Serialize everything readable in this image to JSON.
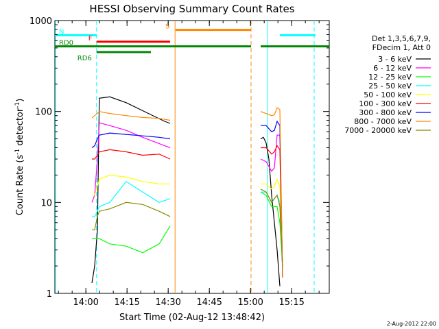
{
  "chart_data": {
    "type": "line",
    "title": "HESSI Observing Summary Count Rates",
    "xlabel": "Start Time (02-Aug-12 13:48:42)",
    "ylabel_main": "Count Rate (s",
    "ylabel_sup1": "-1",
    "ylabel_mid": " detector",
    "ylabel_sup2": "-1",
    "ylabel_end": ")",
    "yscale": "log",
    "ylim": [
      1,
      1000
    ],
    "xlim_minutes": [
      0,
      100
    ],
    "x_unit": "minutes after 13:48:42",
    "yticks": [
      {
        "value": 1,
        "label": "1"
      },
      {
        "value": 10,
        "label": "10"
      },
      {
        "value": 100,
        "label": "100"
      },
      {
        "value": 1000,
        "label": "1000"
      }
    ],
    "xticks": [
      {
        "minute": 11.3,
        "label": "14:00"
      },
      {
        "minute": 26.3,
        "label": "14:15"
      },
      {
        "minute": 41.3,
        "label": "14:30"
      },
      {
        "minute": 56.3,
        "label": "14:45"
      },
      {
        "minute": 71.3,
        "label": "15:00"
      },
      {
        "minute": 86.3,
        "label": "15:15"
      }
    ],
    "legend": {
      "header": [
        "Det 1,3,5,6,7,9,",
        "FDecim 1, Att 0"
      ],
      "placement": "right"
    },
    "series": [
      {
        "name": "3 - 6 keV",
        "color": "#000000",
        "segments": [
          [
            [
              13.5,
              1.3
            ],
            [
              14.5,
              2.0
            ],
            [
              15.5,
              5
            ],
            [
              16.2,
              140
            ],
            [
              20,
              145
            ],
            [
              26,
              125
            ],
            [
              32,
              102
            ],
            [
              40,
              78
            ],
            [
              42,
              74
            ]
          ],
          [
            [
              75,
              50
            ],
            [
              76,
              52
            ],
            [
              77,
              45
            ],
            [
              78,
              30
            ],
            [
              79,
              12
            ],
            [
              80,
              6
            ],
            [
              81,
              3
            ],
            [
              82,
              1.2
            ]
          ]
        ]
      },
      {
        "name": "6 - 12 keV",
        "color": "#ff00ff",
        "segments": [
          [
            [
              13.5,
              10
            ],
            [
              14.5,
              12
            ],
            [
              15.5,
              30
            ],
            [
              16.2,
              75
            ],
            [
              20,
              70
            ],
            [
              26,
              62
            ],
            [
              32,
              52
            ],
            [
              40,
              42
            ],
            [
              42,
              40
            ]
          ],
          [
            [
              75,
              30
            ],
            [
              77,
              28
            ],
            [
              79,
              22
            ],
            [
              80,
              24
            ],
            [
              81,
              55
            ],
            [
              82,
              55
            ],
            [
              83,
              1.5
            ]
          ]
        ]
      },
      {
        "name": "12 - 25 keV",
        "color": "#00ff00",
        "segments": [
          [
            [
              13.5,
              4
            ],
            [
              14.5,
              4
            ],
            [
              15.5,
              4
            ],
            [
              16.2,
              4
            ],
            [
              20,
              3.5
            ],
            [
              26,
              3.3
            ],
            [
              32,
              2.8
            ],
            [
              38,
              3.5
            ],
            [
              42,
              5.5
            ]
          ],
          [
            [
              75,
              13
            ],
            [
              77,
              12
            ],
            [
              79,
              9
            ],
            [
              80,
              9
            ],
            [
              81,
              9
            ],
            [
              82,
              6
            ],
            [
              83,
              2
            ]
          ]
        ]
      },
      {
        "name": "25 - 50 keV",
        "color": "#00ffff",
        "segments": [
          [
            [
              13.5,
              7
            ],
            [
              14.5,
              7
            ],
            [
              15.5,
              8
            ],
            [
              16.2,
              9
            ],
            [
              20,
              10
            ],
            [
              26,
              17
            ],
            [
              32,
              13
            ],
            [
              38,
              10
            ],
            [
              42,
              11
            ]
          ],
          [
            [
              75,
              13
            ],
            [
              77,
              13
            ],
            [
              79,
              10
            ],
            [
              80,
              11
            ],
            [
              81,
              12
            ],
            [
              82,
              10
            ],
            [
              83,
              2
            ]
          ]
        ]
      },
      {
        "name": "50 - 100 keV",
        "color": "#ffff00",
        "segments": [
          [
            [
              13.5,
              12
            ],
            [
              14.5,
              12
            ],
            [
              15.5,
              15
            ],
            [
              16.2,
              18
            ],
            [
              20,
              20
            ],
            [
              26,
              19
            ],
            [
              32,
              17
            ],
            [
              38,
              16
            ],
            [
              42,
              16
            ]
          ],
          [
            [
              75,
              16
            ],
            [
              77,
              16
            ],
            [
              79,
              14
            ],
            [
              80,
              15
            ],
            [
              81,
              18
            ],
            [
              82,
              15
            ],
            [
              83,
              2
            ]
          ]
        ]
      },
      {
        "name": "100 - 300 keV",
        "color": "#ff0000",
        "segments": [
          [
            [
              13.5,
              30
            ],
            [
              14.5,
              30
            ],
            [
              15.5,
              33
            ],
            [
              16.2,
              36
            ],
            [
              20,
              38
            ],
            [
              26,
              36
            ],
            [
              32,
              33
            ],
            [
              38,
              34
            ],
            [
              42,
              30
            ]
          ],
          [
            [
              75,
              40
            ],
            [
              77,
              40
            ],
            [
              79,
              34
            ],
            [
              80,
              36
            ],
            [
              81,
              42
            ],
            [
              82,
              38
            ],
            [
              83,
              1.5
            ]
          ]
        ]
      },
      {
        "name": "300 - 800 keV",
        "color": "#0000ff",
        "segments": [
          [
            [
              13.5,
              40
            ],
            [
              14.5,
              42
            ],
            [
              15.5,
              50
            ],
            [
              16.2,
              55
            ],
            [
              20,
              58
            ],
            [
              26,
              56
            ],
            [
              32,
              54
            ],
            [
              38,
              52
            ],
            [
              42,
              50
            ]
          ],
          [
            [
              75,
              70
            ],
            [
              77,
              70
            ],
            [
              79,
              60
            ],
            [
              80,
              62
            ],
            [
              81,
              78
            ],
            [
              82,
              70
            ],
            [
              83,
              1.5
            ]
          ]
        ]
      },
      {
        "name": "800 - 7000 keV",
        "color": "#ff8800",
        "segments": [
          [
            [
              13.5,
              85
            ],
            [
              14.5,
              90
            ],
            [
              15.5,
              95
            ],
            [
              16.2,
              100
            ],
            [
              20,
              95
            ],
            [
              26,
              90
            ],
            [
              32,
              86
            ],
            [
              38,
              84
            ],
            [
              42,
              80
            ]
          ],
          [
            [
              75,
              100
            ],
            [
              77,
              95
            ],
            [
              79,
              90
            ],
            [
              80,
              92
            ],
            [
              81,
              110
            ],
            [
              82,
              105
            ],
            [
              83,
              1.5
            ]
          ]
        ]
      },
      {
        "name": "7000 - 20000 keV",
        "color": "#888800",
        "segments": [
          [
            [
              13.5,
              5
            ],
            [
              14.5,
              5
            ],
            [
              15.5,
              7
            ],
            [
              16.2,
              8
            ],
            [
              20,
              8.5
            ],
            [
              26,
              10
            ],
            [
              32,
              9.5
            ],
            [
              38,
              8
            ],
            [
              42,
              7
            ]
          ],
          [
            [
              75,
              14
            ],
            [
              77,
              13
            ],
            [
              79,
              10
            ],
            [
              80,
              11
            ],
            [
              81,
              12
            ],
            [
              82,
              9
            ],
            [
              83,
              2
            ]
          ]
        ]
      }
    ],
    "flags": [
      {
        "label": "N",
        "color": "#00ffff",
        "y": 690,
        "segments": [
          [
            0,
            15.2
          ],
          [
            82,
            95
          ]
        ]
      },
      {
        "label": "F",
        "color": "#ff0000",
        "y": 585,
        "segments": [
          [
            15.2,
            42
          ]
        ]
      },
      {
        "label": "RD0",
        "color": "#008800",
        "y": 520,
        "segments": [
          [
            0,
            71.5
          ],
          [
            75,
            82
          ],
          [
            82,
            100
          ]
        ]
      },
      {
        "label": "RD6",
        "color": "#008800",
        "y": 450,
        "segments": [
          [
            15.2,
            35
          ]
        ]
      },
      {
        "label": "S",
        "color": "#ff8800",
        "y": 790,
        "segments": [
          [
            44,
            71.5
          ]
        ]
      }
    ],
    "vlines": [
      {
        "minute": 0.2,
        "color": "#00ffff",
        "style": "solid"
      },
      {
        "minute": 15.2,
        "color": "#00ffff",
        "style": "dashed"
      },
      {
        "minute": 43.8,
        "color": "#ff8800",
        "style": "solid"
      },
      {
        "minute": 71.5,
        "color": "#ff8800",
        "style": "dashed"
      },
      {
        "minute": 77.5,
        "color": "#00ffff",
        "style": "solid"
      },
      {
        "minute": 94.5,
        "color": "#00ffff",
        "style": "dashed"
      }
    ],
    "timestamp": "2-Aug-2012 22:00"
  }
}
